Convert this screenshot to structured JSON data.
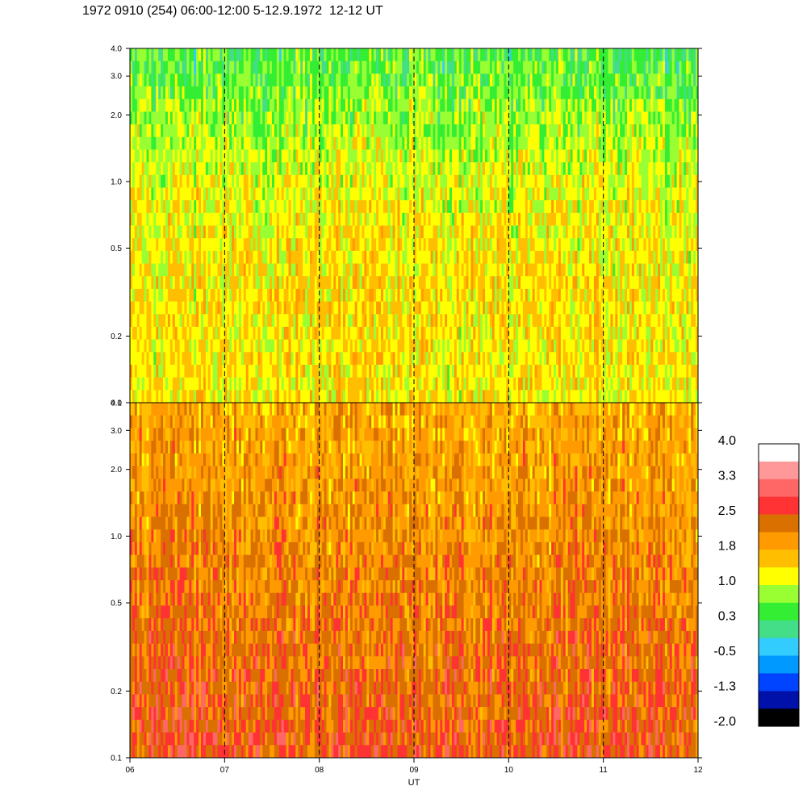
{
  "title": "1972 0910 (254) 06:00-12:00 5-12.9.1972  12-12 UT",
  "chart_data": {
    "type": "heatmap",
    "xlabel": "UT",
    "x_ticks": [
      "06",
      "07",
      "08",
      "09",
      "10",
      "11",
      "12"
    ],
    "xlim": [
      6,
      12
    ],
    "y_scale": "log",
    "ylim": [
      0.1,
      4.0
    ],
    "y_ticks": [
      "0.1",
      "0.2",
      "0.5",
      "1.0",
      "2.0",
      "3.0",
      "4.0"
    ],
    "y_tick_values": [
      0.1,
      0.2,
      0.5,
      1.0,
      2.0,
      3.0,
      4.0
    ],
    "dashed_hour_lines": [
      7,
      8,
      9,
      10,
      11
    ],
    "panels": [
      {
        "name": "top-panel",
        "dominant_range": [
          0.3,
          1.5
        ]
      },
      {
        "name": "bottom-panel",
        "dominant_range": [
          1.5,
          2.5
        ]
      }
    ],
    "colorbar": {
      "labels": [
        "4.0",
        "3.3",
        "2.5",
        "1.8",
        "1.0",
        "0.3",
        "-0.5",
        "-1.3",
        "-2.0"
      ],
      "colors": [
        "#ffffff",
        "#ff9999",
        "#ff6666",
        "#ff3333",
        "#d97000",
        "#ff9a00",
        "#ffbf00",
        "#ffff00",
        "#99ff33",
        "#33ee33",
        "#44dd88",
        "#33ccff",
        "#0099ff",
        "#0044ff",
        "#0011aa",
        "#000000"
      ],
      "min": -2.0,
      "max": 4.0
    }
  }
}
